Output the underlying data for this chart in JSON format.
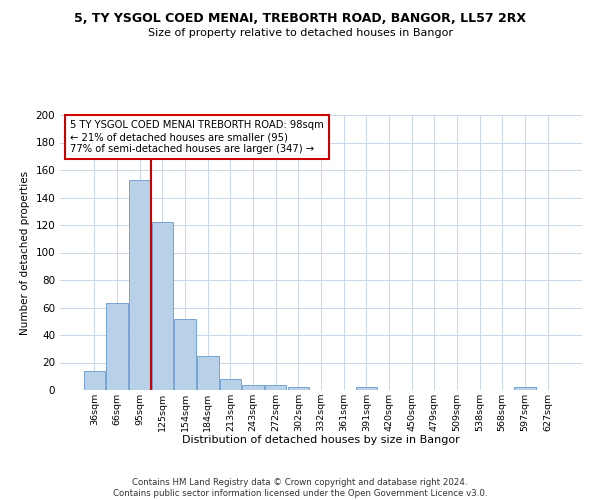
{
  "title_line1": "5, TY YSGOL COED MENAI, TREBORTH ROAD, BANGOR, LL57 2RX",
  "title_line2": "Size of property relative to detached houses in Bangor",
  "xlabel": "Distribution of detached houses by size in Bangor",
  "ylabel": "Number of detached properties",
  "categories": [
    "36sqm",
    "66sqm",
    "95sqm",
    "125sqm",
    "154sqm",
    "184sqm",
    "213sqm",
    "243sqm",
    "272sqm",
    "302sqm",
    "332sqm",
    "361sqm",
    "391sqm",
    "420sqm",
    "450sqm",
    "479sqm",
    "509sqm",
    "538sqm",
    "568sqm",
    "597sqm",
    "627sqm"
  ],
  "bar_heights": [
    14,
    63,
    153,
    122,
    52,
    25,
    8,
    4,
    4,
    2,
    0,
    0,
    2,
    0,
    0,
    0,
    0,
    0,
    0,
    2,
    0
  ],
  "bar_color": "#b8d0e8",
  "bar_edge_color": "#6699cc",
  "vline_x": 2.5,
  "vline_color": "#cc0000",
  "annotation_text": "5 TY YSGOL COED MENAI TREBORTH ROAD: 98sqm\n← 21% of detached houses are smaller (95)\n77% of semi-detached houses are larger (347) →",
  "annotation_box_color": "#cc0000",
  "ylim": [
    0,
    200
  ],
  "yticks": [
    0,
    20,
    40,
    60,
    80,
    100,
    120,
    140,
    160,
    180,
    200
  ],
  "footer": "Contains HM Land Registry data © Crown copyright and database right 2024.\nContains public sector information licensed under the Open Government Licence v3.0.",
  "bg_color": "#ffffff",
  "grid_color": "#c8d8e8"
}
